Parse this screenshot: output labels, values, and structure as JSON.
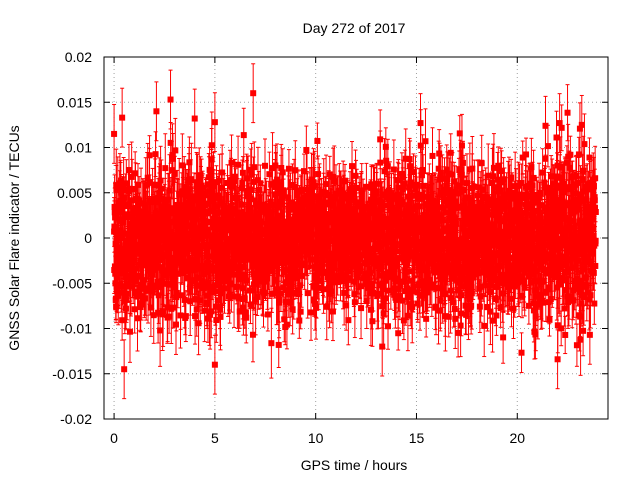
{
  "chart_data": {
    "type": "scatter",
    "title": "Day 272 of 2017",
    "xlabel": "GPS time / hours",
    "ylabel": "GNSS Solar Flare indicator / TECUs",
    "xlim": [
      -0.5,
      24.5
    ],
    "ylim": [
      -0.02,
      0.02
    ],
    "xticks": [
      "0",
      "5",
      "10",
      "15",
      "20"
    ],
    "yticks": [
      "0.02",
      "0.015",
      "0.01",
      "0.005",
      "0",
      "-0.005",
      "-0.01",
      "-0.015",
      "-0.02"
    ],
    "grid": true,
    "series_color": "#ff0000",
    "series": [
      {
        "name": "solar flare indicator",
        "marker": "square",
        "error_bars": true,
        "x_range": [
          0,
          23.9
        ],
        "sample_interval_hours": 0.0083,
        "typical_spread": 0.004,
        "typical_error": 0.0025,
        "notable_points": [
          {
            "x": 0.4,
            "y": 0.0133
          },
          {
            "x": 0.5,
            "y": -0.0145
          },
          {
            "x": 2.1,
            "y": 0.014
          },
          {
            "x": 2.8,
            "y": 0.0153
          },
          {
            "x": 4.0,
            "y": 0.0132
          },
          {
            "x": 5.0,
            "y": 0.0128
          },
          {
            "x": 5.0,
            "y": -0.014
          },
          {
            "x": 6.9,
            "y": 0.016
          },
          {
            "x": 13.3,
            "y": -0.012
          },
          {
            "x": 13.2,
            "y": 0.0109
          },
          {
            "x": 15.2,
            "y": 0.0127
          },
          {
            "x": 21.4,
            "y": 0.0124
          },
          {
            "x": 22.0,
            "y": -0.0134
          },
          {
            "x": 22.1,
            "y": 0.0127
          },
          {
            "x": 23.2,
            "y": 0.0125
          },
          {
            "x": 0.0,
            "y": 0.0115
          },
          {
            "x": 23.6,
            "y": -0.0107
          }
        ]
      }
    ]
  }
}
